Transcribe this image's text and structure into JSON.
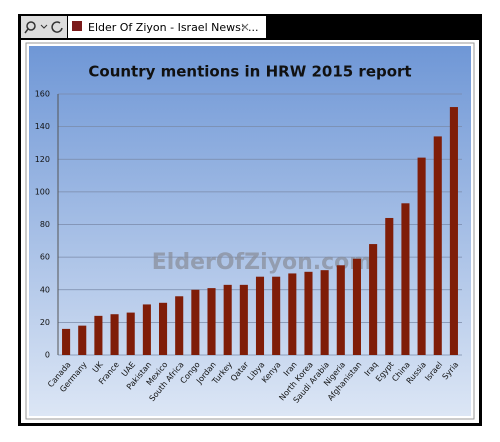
{
  "browser": {
    "tab_title": "Elder Of Ziyon - Israel News: ..."
  },
  "chart_data": {
    "type": "bar",
    "title": "Country mentions in HRW 2015 report",
    "watermark": "ElderOfZiyon.com",
    "categories": [
      "Canada",
      "Germany",
      "UK",
      "France",
      "UAE",
      "Pakistan",
      "Mexico",
      "South Africa",
      "Congo",
      "Jordan",
      "Turkey",
      "Qatar",
      "Libya",
      "Kenya",
      "Iran",
      "North Korea",
      "Saudi Arabia",
      "Nigeria",
      "Afghanistan",
      "Iraq",
      "Egypt",
      "China",
      "Russia",
      "Israel",
      "Syria"
    ],
    "values": [
      16,
      18,
      24,
      25,
      26,
      31,
      32,
      36,
      40,
      41,
      43,
      43,
      48,
      48,
      50,
      51,
      52,
      55,
      59,
      68,
      84,
      93,
      121,
      134,
      152
    ],
    "color": "#7f1d08",
    "ylim": [
      0,
      160
    ],
    "yticks": [
      0,
      20,
      40,
      60,
      80,
      100,
      120,
      140,
      160
    ],
    "grid": true
  }
}
